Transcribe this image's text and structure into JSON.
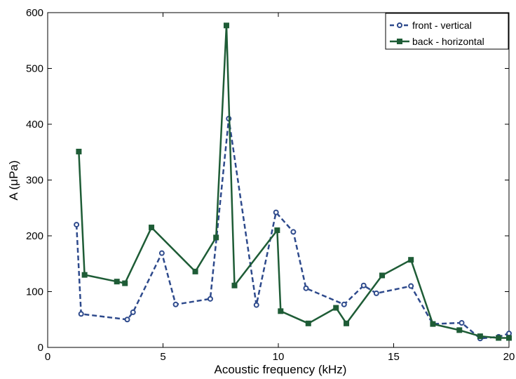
{
  "chart_data": {
    "type": "line",
    "xlabel": "Acoustic frequency (kHz)",
    "ylabel": "A (μPa)",
    "xlim": [
      0,
      20
    ],
    "ylim": [
      0,
      600
    ],
    "xticks": [
      0,
      5,
      10,
      15,
      20
    ],
    "yticks": [
      0,
      100,
      200,
      300,
      400,
      500,
      600
    ],
    "grid": false,
    "legend_position": "top-right",
    "series": [
      {
        "name": "front - vertical",
        "color": "#2e4a8c",
        "line_style": "dashed",
        "marker": "circle",
        "x": [
          1.25,
          1.45,
          3.45,
          3.7,
          4.95,
          5.55,
          7.05,
          7.85,
          9.05,
          9.9,
          10.65,
          11.2,
          12.85,
          13.7,
          14.25,
          15.75,
          16.7,
          17.95,
          18.75,
          19.55,
          20.0
        ],
        "y": [
          220,
          60,
          50,
          63,
          169,
          77,
          87,
          410,
          76,
          242,
          207,
          106,
          77,
          111,
          97,
          110,
          42,
          44,
          16,
          19,
          25
        ]
      },
      {
        "name": "back - horizontal",
        "color": "#1e5c36",
        "line_style": "solid",
        "marker": "square",
        "x": [
          1.35,
          1.6,
          3.0,
          3.35,
          4.5,
          6.4,
          7.3,
          7.75,
          8.1,
          9.95,
          10.1,
          11.3,
          12.5,
          12.95,
          14.5,
          15.75,
          16.7,
          17.85,
          18.75,
          19.55,
          20.0
        ],
        "y": [
          351,
          130,
          118,
          115,
          215,
          136,
          197,
          577,
          111,
          210,
          65,
          43,
          71,
          43,
          129,
          157,
          42,
          31,
          20,
          17,
          17
        ]
      }
    ]
  }
}
